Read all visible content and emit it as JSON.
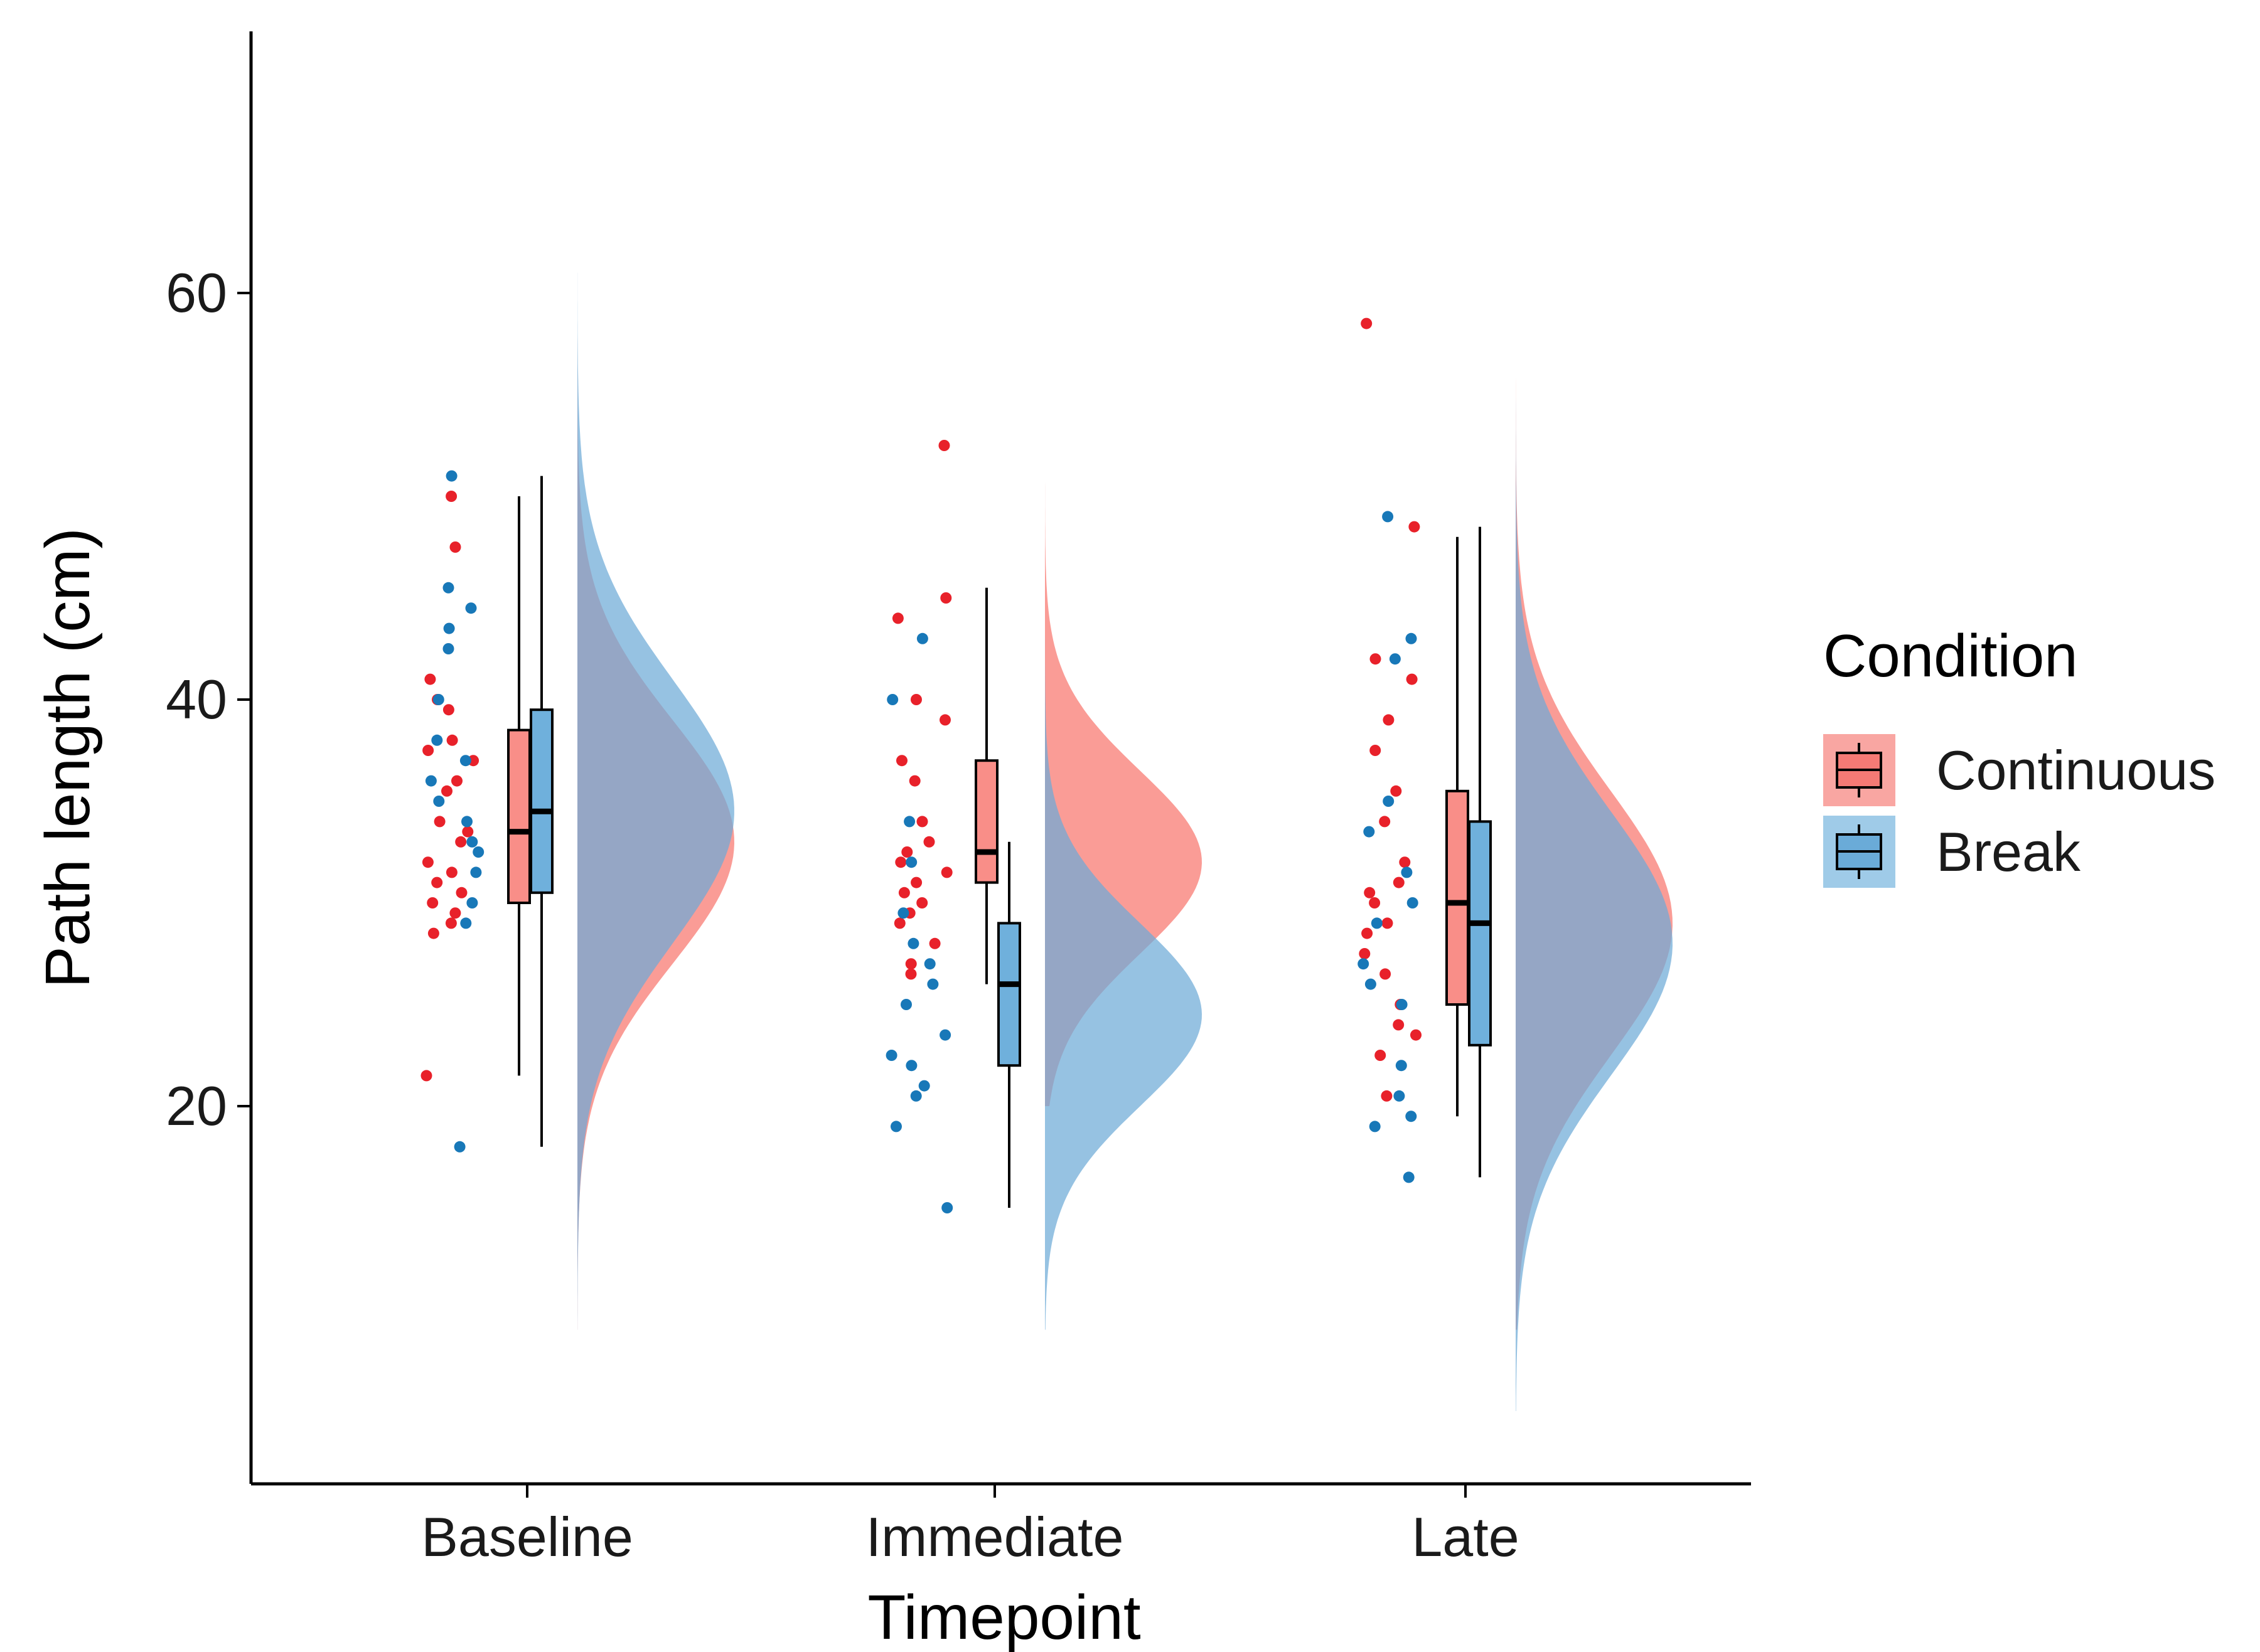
{
  "chart_data": {
    "type": "raincloud",
    "title": "",
    "xlabel": "Timepoint",
    "ylabel": "Path length (cm)",
    "categories": [
      "Baseline",
      "Immediate",
      "Late"
    ],
    "y_ticks": [
      20,
      40,
      60
    ],
    "ylim": [
      3.5,
      72.5
    ],
    "grid": false,
    "legend": {
      "title": "Condition",
      "position": "right",
      "entries": [
        {
          "name": "Continuous",
          "color": "#f8766d"
        },
        {
          "name": "Break",
          "color": "#4a9fd4"
        }
      ]
    },
    "series": [
      {
        "name": "Continuous",
        "color": "#f8766d",
        "point_color": "#e8212a",
        "box": [
          {
            "category": "Baseline",
            "min": 21.5,
            "q1": 30.0,
            "median": 33.5,
            "q3": 38.5,
            "max": 50.0
          },
          {
            "category": "Immediate",
            "min": 26.0,
            "q1": 31.0,
            "median": 32.5,
            "q3": 37.0,
            "max": 45.5
          },
          {
            "category": "Late",
            "min": 19.5,
            "q1": 25.0,
            "median": 30.0,
            "q3": 35.5,
            "max": 48.0
          }
        ],
        "density": [
          {
            "category": "Baseline",
            "mean": 33.0,
            "sd": 6.0,
            "range": [
              9,
              60
            ]
          },
          {
            "category": "Immediate",
            "mean": 32.0,
            "sd": 4.5,
            "range": [
              20,
              59
            ]
          },
          {
            "category": "Late",
            "mean": 29.0,
            "sd": 6.5,
            "range": [
              9,
              69
            ]
          }
        ],
        "points": [
          {
            "category": "Baseline",
            "values": [
              50.0,
              47.5,
              41.0,
              40.0,
              39.5,
              38.0,
              37.5,
              37.0,
              36.0,
              35.5,
              34.0,
              33.5,
              33.0,
              32.0,
              31.5,
              31.0,
              30.5,
              30.0,
              29.5,
              29.0,
              28.5,
              21.5
            ]
          },
          {
            "category": "Immediate",
            "values": [
              52.5,
              45.0,
              44.0,
              40.0,
              39.0,
              37.0,
              36.0,
              34.0,
              33.0,
              32.5,
              32.0,
              31.5,
              31.0,
              30.5,
              30.0,
              29.5,
              29.0,
              28.0,
              27.0,
              26.5
            ]
          },
          {
            "category": "Late",
            "values": [
              58.5,
              48.5,
              42.0,
              41.0,
              39.0,
              37.5,
              35.5,
              34.0,
              32.0,
              31.0,
              30.5,
              30.0,
              29.0,
              28.5,
              27.5,
              26.5,
              25.0,
              24.0,
              23.5,
              22.5,
              20.5
            ]
          }
        ]
      },
      {
        "name": "Break",
        "color": "#4a9fd4",
        "point_color": "#1878b8",
        "box": [
          {
            "category": "Baseline",
            "min": 18.0,
            "q1": 30.5,
            "median": 34.5,
            "q3": 39.5,
            "max": 51.0
          },
          {
            "category": "Immediate",
            "min": 15.0,
            "q1": 22.0,
            "median": 26.0,
            "q3": 29.0,
            "max": 33.0
          },
          {
            "category": "Late",
            "min": 16.5,
            "q1": 23.0,
            "median": 29.0,
            "q3": 34.0,
            "max": 48.5
          }
        ],
        "density": [
          {
            "category": "Baseline",
            "mean": 34.5,
            "sd": 6.5,
            "range": [
              9,
              61
            ]
          },
          {
            "category": "Immediate",
            "mean": 24.5,
            "sd": 4.5,
            "range": [
              9,
              45
            ]
          },
          {
            "category": "Late",
            "mean": 28.0,
            "sd": 6.5,
            "range": [
              5,
              65
            ]
          }
        ],
        "points": [
          {
            "category": "Baseline",
            "values": [
              51.0,
              45.5,
              44.5,
              43.5,
              42.5,
              40.0,
              38.0,
              37.0,
              36.0,
              35.0,
              34.0,
              33.0,
              32.5,
              31.5,
              30.0,
              29.0,
              18.0
            ]
          },
          {
            "category": "Immediate",
            "values": [
              43.0,
              40.0,
              34.0,
              32.0,
              29.5,
              28.0,
              27.0,
              26.0,
              25.0,
              23.5,
              22.5,
              22.0,
              21.0,
              20.5,
              19.0,
              15.0
            ]
          },
          {
            "category": "Late",
            "values": [
              49.0,
              43.0,
              42.0,
              35.0,
              33.5,
              31.5,
              30.0,
              29.0,
              27.0,
              26.0,
              25.0,
              22.0,
              20.5,
              19.5,
              19.0,
              16.5
            ]
          }
        ]
      }
    ]
  }
}
